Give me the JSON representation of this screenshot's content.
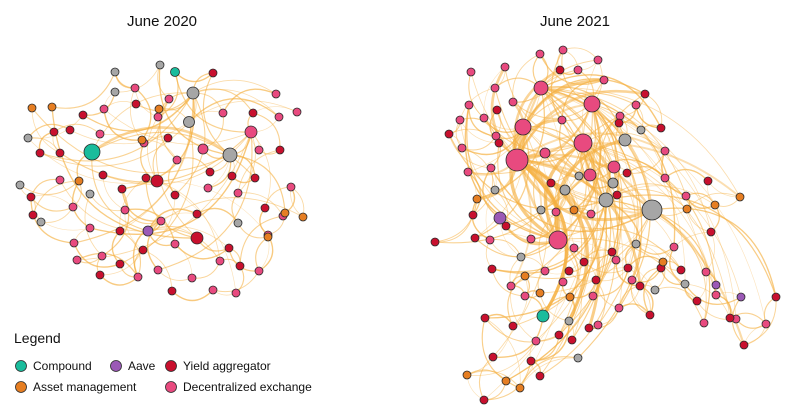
{
  "panels": [
    {
      "title": "June 2020"
    },
    {
      "title": "June 2021"
    }
  ],
  "legend": {
    "title": "Legend",
    "items": [
      {
        "label": "Compound",
        "color": "#1ABC9C"
      },
      {
        "label": "Aave",
        "color": "#9B59B6"
      },
      {
        "label": "Yield aggregator",
        "color": "#C8102E"
      },
      {
        "label": "Asset management",
        "color": "#E67E22"
      },
      {
        "label": "Decentralized exchange",
        "color": "#E84A7F"
      }
    ]
  },
  "colors": {
    "edge": "#F5B041",
    "unclassified_node": "#A6A6A6",
    "node_outline": "#2b2b2b"
  }
}
